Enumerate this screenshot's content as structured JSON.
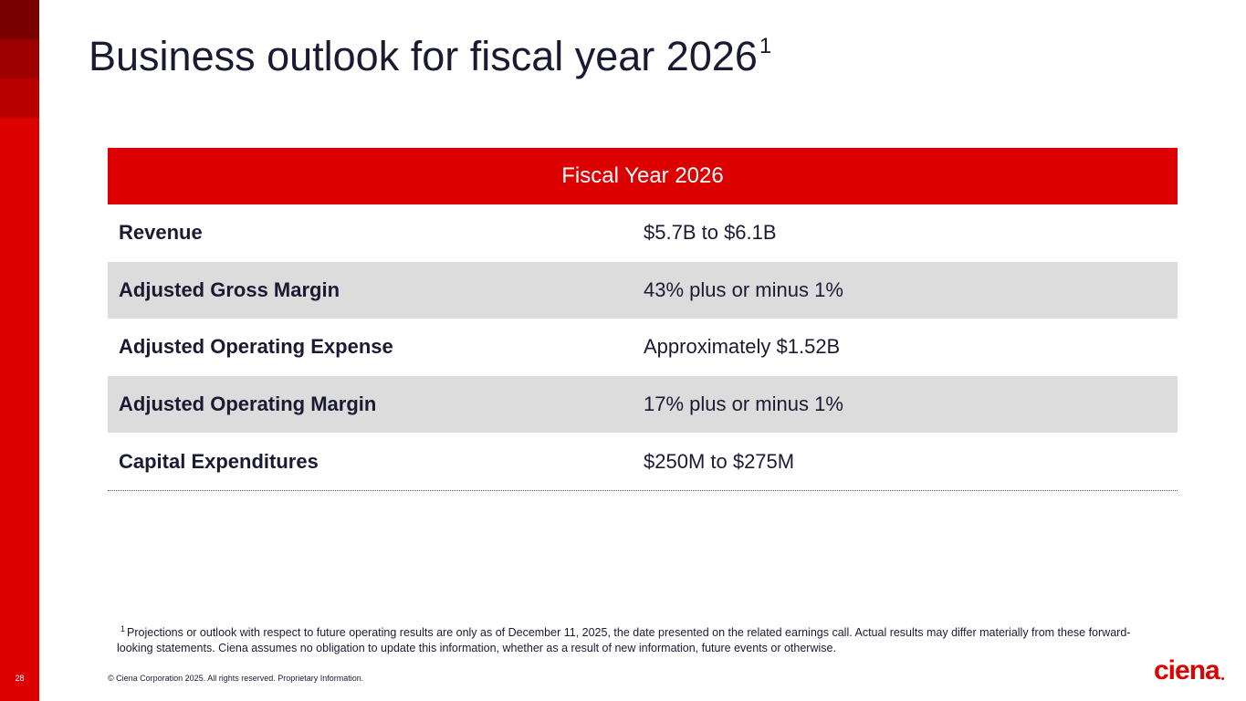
{
  "slide": {
    "page_number": "28",
    "title": "Business outlook for fiscal year 2026",
    "title_footnote_marker": "1"
  },
  "table": {
    "header": "Fiscal Year 2026",
    "rows": [
      {
        "label": "Revenue",
        "value": "$5.7B to $6.1B"
      },
      {
        "label": "Adjusted Gross Margin",
        "value": "43% plus or minus 1%"
      },
      {
        "label": "Adjusted Operating Expense",
        "value": "Approximately $1.52B"
      },
      {
        "label": "Adjusted Operating Margin",
        "value": "17% plus or minus 1%"
      },
      {
        "label": "Capital Expenditures",
        "value": "$250M to $275M"
      }
    ]
  },
  "footnote": {
    "marker": "1",
    "text": "Projections or outlook with respect to future operating results are only as of December 11, 2025, the date presented on the related earnings call. Actual results may differ materially from these forward-looking statements. Ciena assumes no obligation to update this information, whether as a result of new information, future events or otherwise."
  },
  "footer": {
    "copyright": "© Ciena Corporation 2025. All rights reserved. Proprietary Information.",
    "logo_text": "ciena"
  },
  "colors": {
    "brand_red": "#dc0000",
    "text_navy": "#1b1a33",
    "row_alt_gray": "#dcdcdc"
  }
}
